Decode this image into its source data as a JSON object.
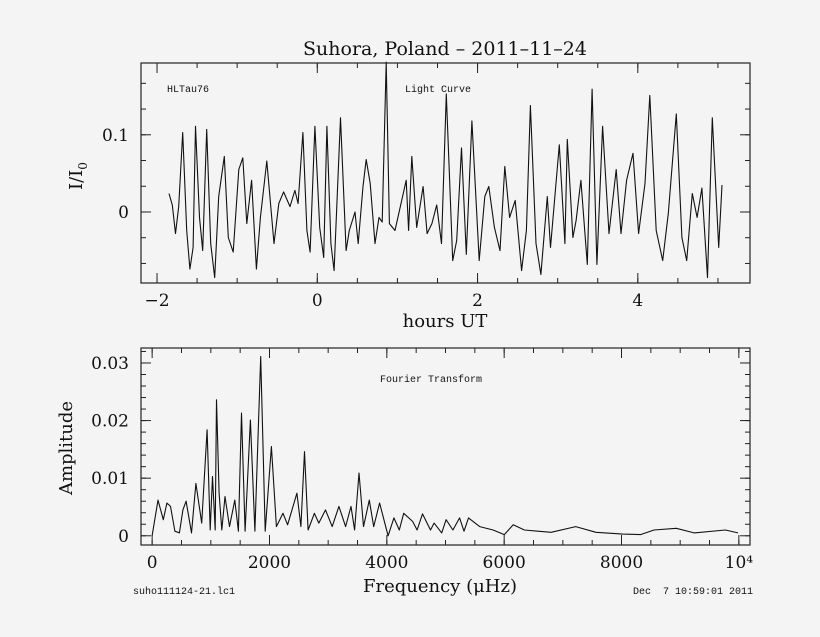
{
  "title": "Suhora, Poland  –  2011–11–24",
  "footer": {
    "file": "suho111124-21.lc1",
    "date": "Dec  7 10:59:01 2011"
  },
  "chart_data": [
    {
      "type": "line",
      "annotation_object": "HLTau76",
      "annotation_label": "Light Curve",
      "xlabel": "hours UT",
      "ylabel_main": "I/I",
      "ylabel_sub": "0",
      "xlim": [
        -2.2,
        5.4
      ],
      "ylim": [
        -0.092,
        0.193
      ],
      "x_ticks": [
        -2,
        0,
        2,
        4
      ],
      "x_tick_labels": [
        "−2",
        "0",
        "2",
        "4"
      ],
      "y_ticks": [
        0,
        0.1
      ],
      "y_tick_labels": [
        "0",
        "0.1"
      ],
      "grid": false,
      "series": [
        {
          "x": [
            -1.85,
            -1.81,
            -1.77,
            -1.73,
            -1.68,
            -1.63,
            -1.59,
            -1.55,
            -1.52,
            -1.47,
            -1.43,
            -1.38,
            -1.33,
            -1.28,
            -1.23,
            -1.16,
            -1.11,
            -1.05,
            -0.98,
            -0.93,
            -0.88,
            -0.82,
            -0.76,
            -0.71,
            -0.63,
            -0.54,
            -0.48,
            -0.42,
            -0.34,
            -0.28,
            -0.24,
            -0.18,
            -0.13,
            -0.09,
            -0.03,
            0.03,
            0.08,
            0.12,
            0.17,
            0.21,
            0.29,
            0.36,
            0.4,
            0.47,
            0.51,
            0.57,
            0.61,
            0.66,
            0.72,
            0.77,
            0.81,
            0.86,
            0.9,
            0.97,
            1.11,
            1.14,
            1.18,
            1.24,
            1.32,
            1.37,
            1.43,
            1.49,
            1.55,
            1.61,
            1.69,
            1.74,
            1.8,
            1.86,
            1.93,
            2.02,
            2.09,
            2.14,
            2.21,
            2.28,
            2.34,
            2.4,
            2.47,
            2.55,
            2.61,
            2.66,
            2.73,
            2.79,
            2.87,
            2.91,
            3.02,
            3.09,
            3.12,
            3.19,
            3.23,
            3.29,
            3.37,
            3.43,
            3.49,
            3.56,
            3.64,
            3.73,
            3.79,
            3.86,
            3.94,
            4.01,
            4.09,
            4.15,
            4.23,
            4.31,
            4.38,
            4.48,
            4.55,
            4.61,
            4.68,
            4.74,
            4.8,
            4.87,
            4.93,
            5.01,
            5.05
          ],
          "y": [
            0.024,
            0.009,
            -0.028,
            0.007,
            0.103,
            -0.024,
            -0.074,
            -0.046,
            0.111,
            -0.007,
            -0.05,
            0.107,
            -0.041,
            -0.085,
            0.02,
            0.072,
            -0.033,
            -0.052,
            0.055,
            0.07,
            -0.015,
            0.041,
            -0.074,
            -0.007,
            0.066,
            -0.041,
            0.011,
            0.026,
            0.007,
            0.028,
            0.011,
            0.103,
            -0.024,
            -0.052,
            0.111,
            -0.02,
            -0.059,
            0.111,
            -0.041,
            -0.076,
            0.122,
            -0.05,
            -0.024,
            0,
            -0.041,
            0.033,
            0.068,
            0.037,
            -0.041,
            -0.007,
            -0.013,
            0.194,
            -0.015,
            -0.024,
            0.041,
            -0.024,
            0.072,
            -0.02,
            0.033,
            -0.028,
            -0.015,
            0.009,
            -0.041,
            0.153,
            -0.063,
            -0.037,
            0.083,
            -0.055,
            0.118,
            -0.063,
            0.02,
            0.033,
            -0.02,
            -0.05,
            0.059,
            -0.007,
            0.015,
            -0.076,
            -0.024,
            0.138,
            -0.041,
            -0.081,
            0.02,
            -0.046,
            0.087,
            -0.041,
            0.094,
            -0.033,
            -0.011,
            0.041,
            -0.068,
            0.159,
            -0.068,
            0.111,
            -0.028,
            0.055,
            -0.028,
            0.041,
            0.076,
            -0.028,
            0.037,
            0.151,
            -0.024,
            -0.063,
            -0.002,
            0.127,
            -0.033,
            -0.063,
            0.024,
            -0.007,
            0.031,
            -0.085,
            0.122,
            -0.046,
            0.035
          ]
        }
      ]
    },
    {
      "type": "line",
      "annotation_label": "Fourier Transform",
      "xlabel": "Frequency (μHz)",
      "ylabel": "Amplitude",
      "xlim": [
        -190,
        10190
      ],
      "ylim": [
        -0.0016,
        0.0326
      ],
      "x_ticks": [
        0,
        2000,
        4000,
        6000,
        8000,
        10000
      ],
      "x_tick_labels": [
        "0",
        "2000",
        "4000",
        "6000",
        "8000",
        "10⁴"
      ],
      "y_ticks": [
        0,
        0.01,
        0.02,
        0.03
      ],
      "y_tick_labels": [
        "0",
        "0.01",
        "0.02",
        "0.03"
      ],
      "grid": false,
      "series": [
        {
          "x": [
            0,
            99,
            190,
            251,
            312,
            388,
            465,
            525,
            579,
            670,
            746,
            845,
            937,
            990,
            1028,
            1074,
            1097,
            1142,
            1188,
            1241,
            1318,
            1409,
            1470,
            1523,
            1584,
            1675,
            1752,
            1851,
            1927,
            2033,
            2117,
            2231,
            2308,
            2468,
            2536,
            2597,
            2658,
            2765,
            2841,
            2955,
            3069,
            3183,
            3298,
            3389,
            3450,
            3526,
            3602,
            3701,
            3777,
            3877,
            4021,
            4120,
            4212,
            4288,
            4440,
            4516,
            4608,
            4745,
            4806,
            4935,
            5011,
            5126,
            5240,
            5316,
            5392,
            5583,
            5811,
            6002,
            6154,
            6344,
            6573,
            6801,
            7220,
            7563,
            8020,
            8324,
            8553,
            8934,
            9238,
            9771,
            9985
          ],
          "y": [
            0,
            0.0062,
            0.0028,
            0.0057,
            0.0051,
            0.0008,
            0.0005,
            0.0045,
            0.006,
            0.0005,
            0.0091,
            0.0022,
            0.0184,
            0.001,
            0.0103,
            0.001,
            0.0236,
            0.0074,
            0.001,
            0.0068,
            0.0016,
            0.0062,
            0.0008,
            0.0213,
            0.0008,
            0.0201,
            0.0008,
            0.0311,
            0.0008,
            0.0155,
            0.0016,
            0.0039,
            0.0019,
            0.0074,
            0.0016,
            0.0146,
            0.001,
            0.0039,
            0.0022,
            0.0045,
            0.0016,
            0.0051,
            0.0016,
            0.0051,
            0.001,
            0.0109,
            0.0016,
            0.0062,
            0.0016,
            0.0057,
            0,
            0.0031,
            0.001,
            0.0039,
            0.0025,
            0.001,
            0.0038,
            0.001,
            0.0022,
            0.0005,
            0.0028,
            0.001,
            0.0031,
            0.0008,
            0.0031,
            0.0016,
            0.001,
            0.0002,
            0.0019,
            0.001,
            0.0008,
            0.0006,
            0.0016,
            0.0006,
            0.0003,
            0.0002,
            0.001,
            0.0013,
            0.0005,
            0.001,
            0.0005
          ]
        }
      ]
    }
  ]
}
